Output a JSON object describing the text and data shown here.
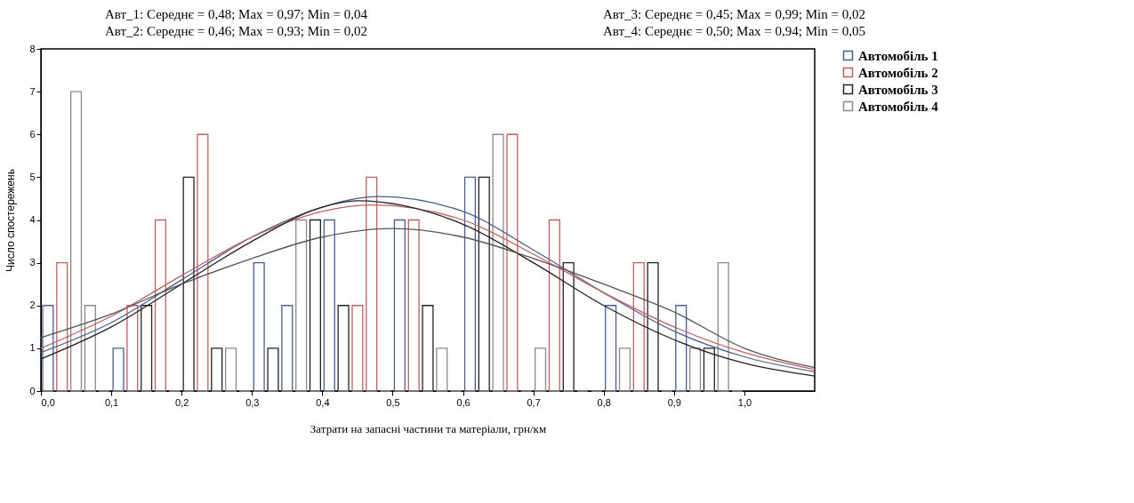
{
  "chart_data": {
    "type": "histogram",
    "annotations": [
      "Авт_1: Середнє = 0,48; Max = 0,97; Min = 0,04",
      "Авт_2: Середнє = 0,46; Max = 0,93; Min = 0,02",
      "Авт_3: Середнє = 0,45; Max = 0,99; Min = 0,02",
      "Авт_4: Середнє = 0,50; Max = 0,94; Min = 0,05"
    ],
    "xlabel": "Затрати на запасні частини та матеріали, грн/км",
    "ylabel": "Число спостережень",
    "bins": [
      0,
      0.02,
      0.04,
      0.06,
      0.08,
      0.1,
      0.12,
      0.14,
      0.16,
      0.18,
      0.2,
      0.22,
      0.24,
      0.26,
      0.28,
      0.3,
      0.32,
      0.34,
      0.36,
      0.38,
      0.4,
      0.42,
      0.44,
      0.46,
      0.48,
      0.5,
      0.52,
      0.54,
      0.56,
      0.58,
      0.6,
      0.62,
      0.64,
      0.66,
      0.68,
      0.7,
      0.72,
      0.74,
      0.76,
      0.78,
      0.8,
      0.82,
      0.84,
      0.86,
      0.88,
      0.9,
      0.92,
      0.94,
      0.96,
      0.98,
      1.0
    ],
    "series": [
      {
        "name": "Автомобіль 1",
        "color": "#4a5f8c",
        "values": [
          2,
          0,
          0,
          0,
          0,
          1,
          0,
          0,
          0,
          0,
          0,
          0,
          0,
          0,
          0,
          3,
          0,
          2,
          0,
          0,
          4,
          0,
          0,
          0,
          0,
          4,
          0,
          0,
          0,
          0,
          5,
          0,
          0,
          0,
          0,
          0,
          0,
          0,
          0,
          0,
          2,
          0,
          0,
          0,
          0,
          2,
          0,
          0,
          0,
          0
        ]
      },
      {
        "name": "Автомобіль 2",
        "color": "#c06060",
        "values": [
          0,
          3,
          0,
          0,
          0,
          0,
          2,
          0,
          4,
          0,
          0,
          6,
          0,
          0,
          0,
          0,
          0,
          0,
          0,
          0,
          0,
          0,
          2,
          5,
          0,
          0,
          4,
          0,
          0,
          0,
          0,
          0,
          0,
          6,
          0,
          0,
          4,
          0,
          0,
          0,
          0,
          0,
          3,
          0,
          0,
          0,
          0,
          0,
          0,
          0
        ]
      },
      {
        "name": "Автомобіль 3",
        "color": "#222222",
        "values": [
          0,
          0,
          0,
          0,
          0,
          0,
          0,
          2,
          0,
          0,
          5,
          0,
          1,
          0,
          0,
          0,
          1,
          0,
          0,
          4,
          0,
          2,
          0,
          0,
          0,
          0,
          0,
          2,
          0,
          0,
          0,
          5,
          0,
          0,
          0,
          0,
          0,
          3,
          0,
          0,
          0,
          0,
          0,
          3,
          0,
          0,
          0,
          1,
          0,
          0
        ]
      },
      {
        "name": "Автомобіль 4",
        "color": "#8a8a8a",
        "values": [
          0,
          0,
          7,
          2,
          0,
          0,
          0,
          0,
          0,
          0,
          0,
          0,
          0,
          1,
          0,
          0,
          0,
          0,
          4,
          0,
          0,
          0,
          0,
          0,
          0,
          0,
          0,
          0,
          1,
          0,
          0,
          0,
          6,
          0,
          0,
          1,
          0,
          0,
          0,
          0,
          0,
          1,
          0,
          0,
          0,
          0,
          1,
          0,
          3,
          0
        ]
      },
      {
        "type": "line",
        "color": "#4a5f8c",
        "x": [
          0,
          0.1,
          0.2,
          0.3,
          0.4,
          0.48,
          0.6,
          0.7,
          0.8,
          0.9,
          1.0,
          1.1
        ],
        "values": [
          0.9,
          1.6,
          2.6,
          3.6,
          4.3,
          4.55,
          4.2,
          3.3,
          2.3,
          1.4,
          0.8,
          0.45
        ]
      },
      {
        "type": "line",
        "color": "#c06060",
        "x": [
          0,
          0.1,
          0.2,
          0.3,
          0.4,
          0.47,
          0.6,
          0.7,
          0.8,
          0.9,
          1.0,
          1.1
        ],
        "values": [
          1.0,
          1.75,
          2.7,
          3.6,
          4.2,
          4.35,
          4.0,
          3.2,
          2.3,
          1.5,
          0.9,
          0.5
        ]
      },
      {
        "type": "line",
        "color": "#222222",
        "x": [
          0,
          0.1,
          0.2,
          0.3,
          0.4,
          0.45,
          0.6,
          0.7,
          0.8,
          0.9,
          1.0,
          1.1
        ],
        "values": [
          0.75,
          1.5,
          2.5,
          3.5,
          4.3,
          4.45,
          3.9,
          3.0,
          2.0,
          1.2,
          0.65,
          0.35
        ]
      },
      {
        "type": "line",
        "color": "#555555",
        "x": [
          0,
          0.1,
          0.2,
          0.3,
          0.4,
          0.5,
          0.6,
          0.7,
          0.8,
          0.9,
          1.0,
          1.1
        ],
        "values": [
          1.25,
          1.8,
          2.5,
          3.1,
          3.6,
          3.8,
          3.6,
          3.1,
          2.5,
          1.85,
          1.0,
          0.55
        ]
      }
    ],
    "xlim": [
      0,
      1.1
    ],
    "xticks": [
      {
        "value": 0,
        "label": "0,0"
      },
      {
        "value": 0.1,
        "label": "0,1"
      },
      {
        "value": 0.2,
        "label": "0,2"
      },
      {
        "value": 0.3,
        "label": "0,3"
      },
      {
        "value": 0.4,
        "label": "0,4"
      },
      {
        "value": 0.5,
        "label": "0,5"
      },
      {
        "value": 0.6,
        "label": "0,6"
      },
      {
        "value": 0.7,
        "label": "0,7"
      },
      {
        "value": 0.8,
        "label": "0,8"
      },
      {
        "value": 0.9,
        "label": "0,9"
      },
      {
        "value": 1.0,
        "label": "1,0"
      }
    ],
    "ylim": [
      0,
      8
    ],
    "yticks": [
      0,
      1,
      2,
      3,
      4,
      5,
      6,
      7,
      8
    ],
    "legend": "right"
  }
}
